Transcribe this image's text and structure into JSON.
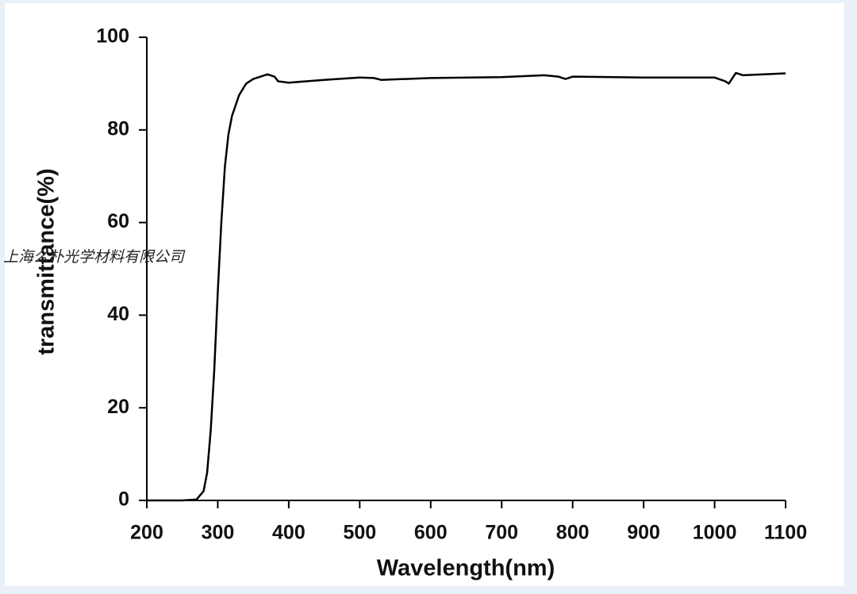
{
  "chart_data": {
    "type": "line",
    "x_label": "Wavelength(nm)",
    "y_label": "transmittance(%)",
    "watermark": "上海么朴光学材料有限公司",
    "xlim": [
      200,
      1100
    ],
    "xticks": [
      200,
      300,
      400,
      500,
      600,
      700,
      800,
      900,
      1000,
      1100
    ],
    "ylim": [
      0,
      100
    ],
    "yticks": [
      0,
      20,
      40,
      60,
      80,
      100
    ],
    "series": [
      {
        "color": "#000000",
        "x": [
          200,
          250,
          270,
          280,
          285,
          290,
          295,
          300,
          305,
          310,
          315,
          320,
          330,
          340,
          350,
          360,
          370,
          380,
          385,
          400,
          450,
          500,
          520,
          530,
          600,
          700,
          760,
          780,
          790,
          800,
          900,
          1000,
          1015,
          1020,
          1030,
          1040,
          1100
        ],
        "values": [
          0,
          0,
          0.2,
          2,
          6,
          15,
          28,
          45,
          60,
          72,
          79,
          83,
          87.5,
          90,
          91,
          91.5,
          92,
          91.5,
          90.5,
          90.2,
          90.8,
          91.3,
          91.2,
          90.8,
          91.2,
          91.4,
          91.8,
          91.5,
          91,
          91.5,
          91.3,
          91.3,
          90.5,
          90,
          92.3,
          91.8,
          92.2
        ]
      }
    ]
  }
}
